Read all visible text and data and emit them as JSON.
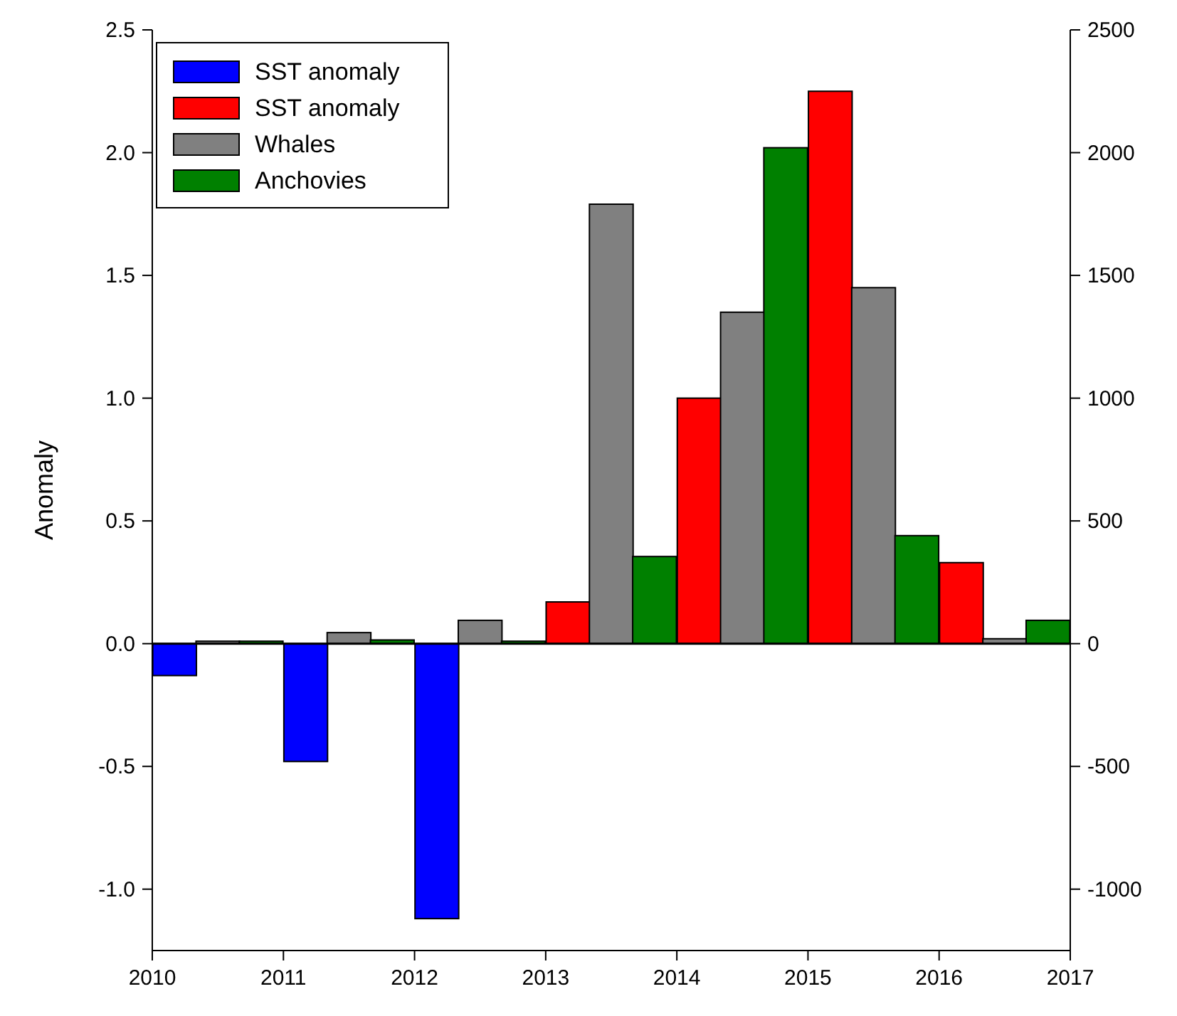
{
  "chart_data": {
    "type": "bar",
    "ylabel": "Anomaly",
    "xlim": [
      2010,
      2017
    ],
    "xticks": [
      2010,
      2011,
      2012,
      2013,
      2014,
      2015,
      2016,
      2017
    ],
    "ylim": [
      -1.25,
      2.5
    ],
    "yticks": [
      {
        "value": -1,
        "label": "-1.0"
      },
      {
        "value": -0.5,
        "label": "-0.5"
      },
      {
        "value": 0,
        "label": "0.0"
      },
      {
        "value": 0.5,
        "label": "0.5"
      },
      {
        "value": 1,
        "label": "1.0"
      },
      {
        "value": 1.5,
        "label": "1.5"
      },
      {
        "value": 2,
        "label": "2.0"
      },
      {
        "value": 2.5,
        "label": "2.5"
      }
    ],
    "y2lim": [
      -1250,
      2500
    ],
    "y2ticks": [
      -1000,
      -500,
      0,
      500,
      1000,
      1500,
      2000,
      2500
    ],
    "legend": "top left",
    "grid": false,
    "ref_lines": [
      {
        "axis": "y",
        "value": 0,
        "color": "#000000"
      }
    ],
    "series": [
      {
        "name": "SST anomaly",
        "color": "#0000ff",
        "x": [
          2010.17,
          2011.17,
          2012.17
        ],
        "values": [
          -0.13,
          -0.48,
          -1.12
        ]
      },
      {
        "name": "SST anomaly",
        "color": "#ff0000",
        "x": [
          2013.17,
          2014.17,
          2015.17,
          2016.17
        ],
        "values": [
          0.17,
          1.0,
          2.25,
          0.33
        ]
      },
      {
        "name": "Whales",
        "color": "#808080",
        "axis": "y2",
        "x": [
          2010.5,
          2011.5,
          2012.5,
          2013.5,
          2014.5,
          2015.5,
          2016.5
        ],
        "values": [
          10,
          45,
          95,
          1790,
          1350,
          1450,
          20
        ]
      },
      {
        "name": "Anchovies",
        "color": "#008000",
        "axis": "y2",
        "x": [
          2010.83,
          2011.83,
          2012.83,
          2013.83,
          2014.83,
          2015.83,
          2016.83
        ],
        "values": [
          10,
          15,
          10,
          355,
          2020,
          440,
          95
        ]
      }
    ]
  }
}
